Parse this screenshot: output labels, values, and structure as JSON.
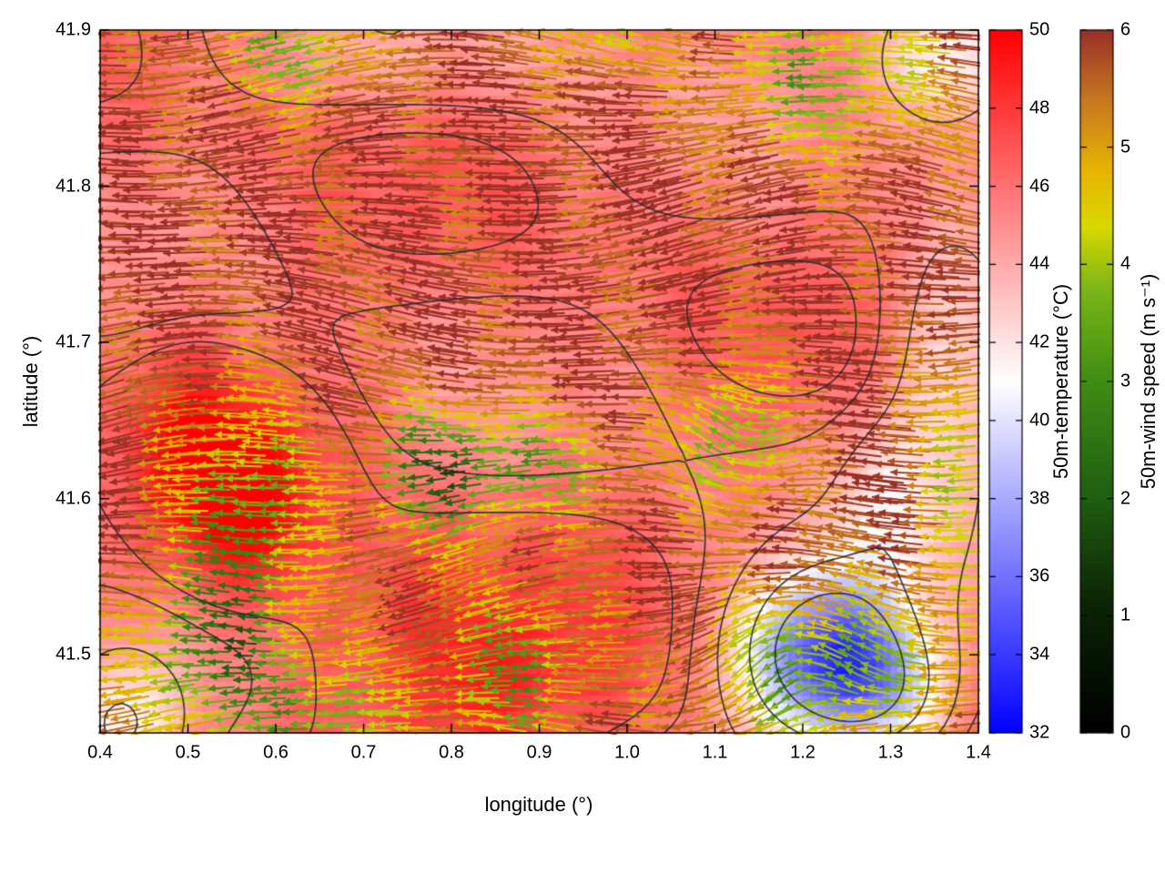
{
  "figure": {
    "xlabel": "longitude (°)",
    "ylabel": "latitude (°)",
    "xticks": [
      "0.4",
      "0.5",
      "0.6",
      "0.7",
      "0.8",
      "0.9",
      "1.0",
      "1.1",
      "1.2",
      "1.3",
      "1.4"
    ],
    "yticks": [
      "41.9",
      "41.8",
      "41.7",
      "41.6",
      "41.5"
    ]
  },
  "chart_data": {
    "type": "heatmap",
    "title": "",
    "xlabel": "longitude (°)",
    "ylabel": "latitude (°)",
    "xlim": [
      0.4,
      1.4
    ],
    "ylim": [
      41.45,
      41.9
    ],
    "grid": false,
    "legend_position": "right colorbars",
    "layers": [
      {
        "name": "50m-temperature field",
        "type": "heatmap",
        "units": "°C",
        "range": [
          32,
          50
        ]
      },
      {
        "name": "wind vectors",
        "type": "quiver",
        "color_by": "50m-wind speed",
        "units": "m s⁻¹",
        "range": [
          0,
          6
        ],
        "dominant_direction": "westward (arrows point left)"
      },
      {
        "name": "contour lines",
        "type": "contour",
        "color": "#2a2a32"
      }
    ],
    "colorbars": [
      {
        "label": "50m-temperature (°C)",
        "min": 32,
        "max": 50,
        "ticks": [
          "50",
          "48",
          "46",
          "44",
          "42",
          "40",
          "38",
          "36",
          "34",
          "32"
        ],
        "colormap": [
          "#0000ff",
          "#ffffff",
          "#ff0000"
        ]
      },
      {
        "label": "50m-wind speed (m s⁻¹)",
        "min": 0,
        "max": 6,
        "ticks": [
          "6",
          "5",
          "4",
          "3",
          "2",
          "1",
          "0"
        ],
        "colormap": [
          "#000000",
          "#1f5c10",
          "#3f8c14",
          "#d8d800",
          "#c87820",
          "#993026"
        ]
      }
    ],
    "features": [
      {
        "description": "cool pocket (~34-38 °C, blue) near lon 1.15-1.3, lat 41.45-41.55"
      },
      {
        "description": "pale/blue patches in top-right corner and bottom-left corner (~40-41 °C)"
      },
      {
        "description": "hot band (~48-50 °C) near lon 0.5-0.65, lat 41.55-41.65 and along bottom-center"
      },
      {
        "description": "reduced wind speed bands (2-4.5 m/s, yellow/green arrows) near lat 41.6-41.65, along the bottom, top edge and around lon 1.1-1.3 bottom-right"
      },
      {
        "description": "prevailing flow westward; speeds mostly 5.5-6 m/s (dark brown-red arrows)"
      }
    ]
  }
}
